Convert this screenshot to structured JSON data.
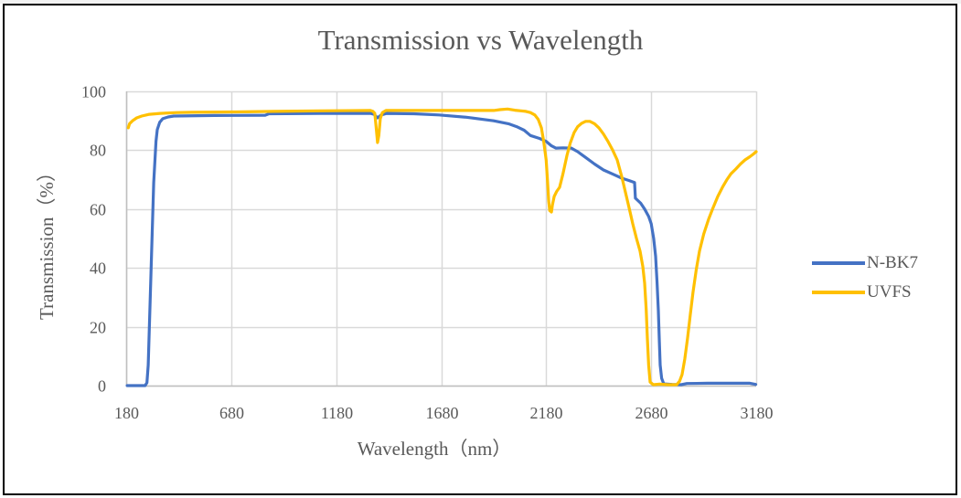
{
  "chart_data": {
    "type": "line",
    "title": "Transmission vs Wavelength",
    "xlabel": "Wavelength（nm）",
    "ylabel": "Transmission（%）",
    "xlim": [
      180,
      3180
    ],
    "ylim": [
      0,
      100
    ],
    "x_ticks": [
      180,
      680,
      1180,
      1680,
      2180,
      2680,
      3180
    ],
    "y_ticks": [
      0,
      20,
      40,
      60,
      80,
      100
    ],
    "grid": true,
    "legend_position": "right",
    "series": [
      {
        "name": "N-BK7",
        "color": "#4472C4",
        "points": [
          [
            185,
            0
          ],
          [
            270,
            0
          ],
          [
            279,
            1
          ],
          [
            285,
            7
          ],
          [
            298,
            38
          ],
          [
            311,
            69
          ],
          [
            322,
            83
          ],
          [
            328,
            87
          ],
          [
            340,
            89.5
          ],
          [
            354,
            90.7
          ],
          [
            380,
            91.3
          ],
          [
            406,
            91.6
          ],
          [
            600,
            91.8
          ],
          [
            842,
            91.9
          ],
          [
            860,
            92.4
          ],
          [
            1100,
            92.5
          ],
          [
            1343,
            92.5
          ],
          [
            1360,
            92.2
          ],
          [
            1377,
            91.0
          ],
          [
            1395,
            92.0
          ],
          [
            1420,
            92.5
          ],
          [
            1550,
            92.4
          ],
          [
            1670,
            92.0
          ],
          [
            1800,
            91.2
          ],
          [
            1930,
            90.0
          ],
          [
            2000,
            89.0
          ],
          [
            2039,
            88.0
          ],
          [
            2075,
            86.8
          ],
          [
            2105,
            85.0
          ],
          [
            2148,
            84.0
          ],
          [
            2180,
            83.0
          ],
          [
            2205,
            81.5
          ],
          [
            2226,
            80.7
          ],
          [
            2260,
            80.8
          ],
          [
            2300,
            80.7
          ],
          [
            2330,
            79.5
          ],
          [
            2366,
            77.6
          ],
          [
            2410,
            75.3
          ],
          [
            2453,
            73.3
          ],
          [
            2500,
            71.8
          ],
          [
            2540,
            70.5
          ],
          [
            2575,
            69.7
          ],
          [
            2601,
            69.0
          ],
          [
            2605,
            63.7
          ],
          [
            2630,
            62.0
          ],
          [
            2649,
            60.0
          ],
          [
            2668,
            57.5
          ],
          [
            2680,
            55.0
          ],
          [
            2692,
            50.0
          ],
          [
            2701,
            44.0
          ],
          [
            2708,
            35.0
          ],
          [
            2714,
            25.5
          ],
          [
            2719,
            15.0
          ],
          [
            2723,
            7.0
          ],
          [
            2730,
            2.5
          ],
          [
            2740,
            0.6
          ],
          [
            2780,
            0.4
          ],
          [
            2823,
            0.3
          ],
          [
            2850,
            0.7
          ],
          [
            2950,
            0.8
          ],
          [
            3050,
            0.8
          ],
          [
            3150,
            0.8
          ],
          [
            3178,
            0.4
          ]
        ]
      },
      {
        "name": "UVFS",
        "color": "#FFC000",
        "points": [
          [
            190,
            87.6
          ],
          [
            196,
            89.0
          ],
          [
            210,
            90.0
          ],
          [
            230,
            91.0
          ],
          [
            254,
            91.6
          ],
          [
            290,
            92.2
          ],
          [
            341,
            92.5
          ],
          [
            420,
            92.8
          ],
          [
            493,
            92.9
          ],
          [
            700,
            93.0
          ],
          [
            885,
            93.2
          ],
          [
            1100,
            93.4
          ],
          [
            1343,
            93.5
          ],
          [
            1355,
            93.2
          ],
          [
            1364,
            92.5
          ],
          [
            1370,
            88.0
          ],
          [
            1377,
            82.6
          ],
          [
            1383,
            85.0
          ],
          [
            1390,
            90.7
          ],
          [
            1400,
            92.8
          ],
          [
            1417,
            93.5
          ],
          [
            1600,
            93.5
          ],
          [
            1800,
            93.5
          ],
          [
            1930,
            93.5
          ],
          [
            1960,
            93.8
          ],
          [
            1996,
            94.0
          ],
          [
            2030,
            93.6
          ],
          [
            2060,
            93.4
          ],
          [
            2083,
            93.2
          ],
          [
            2105,
            92.8
          ],
          [
            2126,
            92.0
          ],
          [
            2142,
            90.5
          ],
          [
            2157,
            87.6
          ],
          [
            2168,
            83.0
          ],
          [
            2180,
            76.7
          ],
          [
            2186,
            70.0
          ],
          [
            2192,
            62.7
          ],
          [
            2197,
            59.5
          ],
          [
            2205,
            59.0
          ],
          [
            2210,
            61.5
          ],
          [
            2218,
            64.3
          ],
          [
            2230,
            66.0
          ],
          [
            2244,
            67.4
          ],
          [
            2260,
            72.0
          ],
          [
            2279,
            78.3
          ],
          [
            2295,
            82.5
          ],
          [
            2313,
            86.0
          ],
          [
            2330,
            88.0
          ],
          [
            2348,
            89.1
          ],
          [
            2368,
            89.8
          ],
          [
            2388,
            89.8
          ],
          [
            2410,
            89.0
          ],
          [
            2431,
            87.6
          ],
          [
            2453,
            85.5
          ],
          [
            2475,
            82.9
          ],
          [
            2497,
            80.0
          ],
          [
            2518,
            76.7
          ],
          [
            2540,
            71.0
          ],
          [
            2562,
            64.3
          ],
          [
            2578,
            59.5
          ],
          [
            2592,
            55.0
          ],
          [
            2610,
            50.0
          ],
          [
            2627,
            45.7
          ],
          [
            2640,
            40.5
          ],
          [
            2649,
            34.8
          ],
          [
            2656,
            26.0
          ],
          [
            2662,
            16.0
          ],
          [
            2668,
            7.0
          ],
          [
            2675,
            1.2
          ],
          [
            2690,
            0.3
          ],
          [
            2720,
            0.5
          ],
          [
            2760,
            0.3
          ],
          [
            2801,
            0.3
          ],
          [
            2815,
            1.5
          ],
          [
            2827,
            3.7
          ],
          [
            2840,
            9.0
          ],
          [
            2853,
            16.0
          ],
          [
            2866,
            24.0
          ],
          [
            2879,
            31.7
          ],
          [
            2895,
            39.5
          ],
          [
            2910,
            45.7
          ],
          [
            2930,
            51.5
          ],
          [
            2953,
            56.5
          ],
          [
            2975,
            60.5
          ],
          [
            2997,
            64.3
          ],
          [
            3020,
            67.5
          ],
          [
            3040,
            69.9
          ],
          [
            3060,
            72.0
          ],
          [
            3083,
            73.6
          ],
          [
            3105,
            75.3
          ],
          [
            3127,
            76.7
          ],
          [
            3150,
            77.8
          ],
          [
            3165,
            78.6
          ],
          [
            3180,
            79.5
          ]
        ]
      }
    ]
  }
}
